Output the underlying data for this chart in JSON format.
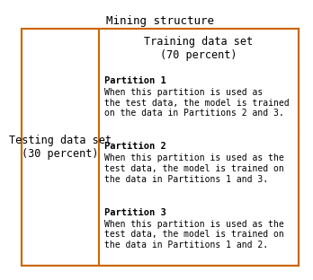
{
  "title": "Mining structure",
  "title_fontsize": 9,
  "fig_bg": "#ffffff",
  "border_color": "#cc6600",
  "border_lw": 1.5,
  "testing_label": "Testing data set\n(30 percent)",
  "testing_bg": "#ffbb33",
  "testing_text_fontsize": 8.5,
  "training_header_label": "Training data set\n(70 percent)",
  "training_header_bg": "#9a9a9a",
  "training_header_fontsize": 8.5,
  "partitions": [
    {
      "title": "Partition 1",
      "body": "When this partition is used as\nthe test data, the model is trained\non the data in Partitions 2 and 3.",
      "bg": "#dde8f4"
    },
    {
      "title": "Partition 2",
      "body": "When this partition is used as the\ntest data, the model is trained on\nthe data in Partitions 1 and 3.",
      "bg": "#c0c0c0"
    },
    {
      "title": "Partition 3",
      "body": "When this partition is used as the\ntest data, the model is trained on\nthe data in Partitions 1 and 2.",
      "bg": "#a8c4d8"
    }
  ],
  "partition_title_fontsize": 7.5,
  "partition_body_fontsize": 7.0
}
